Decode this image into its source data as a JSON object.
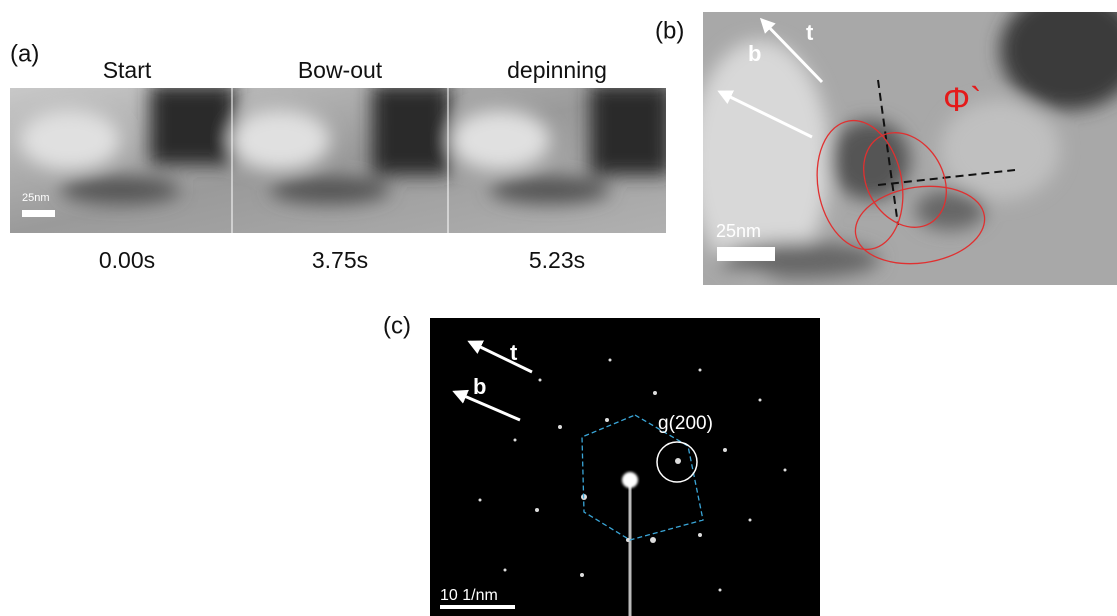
{
  "panels": {
    "a": {
      "label": "(a)",
      "frames": [
        {
          "title": "Start",
          "time": "0.00s"
        },
        {
          "title": "Bow-out",
          "time": "3.75s"
        },
        {
          "title": "depinning",
          "time": "5.23s"
        }
      ],
      "scale_bar": "25nm"
    },
    "b": {
      "label": "(b)",
      "arrow_t": "t",
      "arrow_b": "b",
      "phase": "Φ`",
      "scale_bar": "25nm"
    },
    "c": {
      "label": "(c)",
      "arrow_t": "t",
      "arrow_b": "b",
      "spot": "g(200)",
      "scale_bar": "10 1/nm"
    }
  }
}
